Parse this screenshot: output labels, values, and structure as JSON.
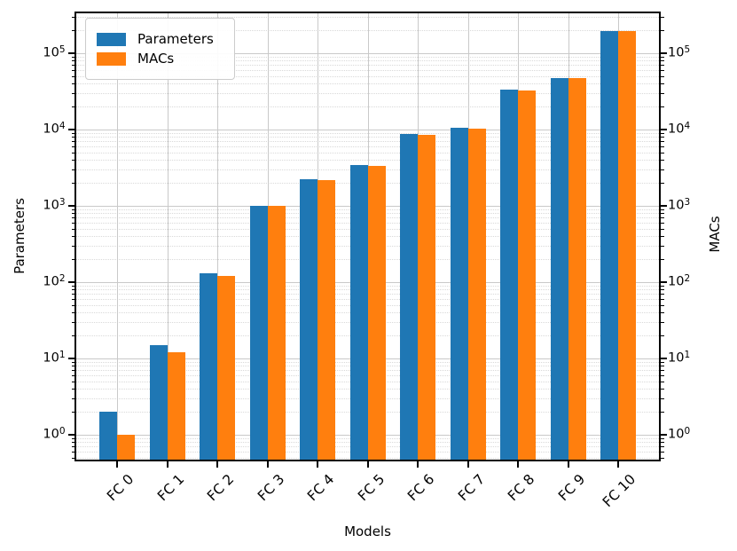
{
  "chart_data": {
    "type": "bar",
    "title": "",
    "xlabel": "Models",
    "ylabel_left": "Parameters",
    "ylabel_right": "MACs",
    "yscale": "log",
    "ylim": [
      0.45,
      350000
    ],
    "ytick_exponents": [
      0,
      1,
      2,
      3,
      4,
      5
    ],
    "grid": {
      "major": true,
      "minor": true,
      "vertical": true
    },
    "legend_position": "upper left",
    "categories": [
      "FC 0",
      "FC 1",
      "FC 2",
      "FC 3",
      "FC 4",
      "FC 5",
      "FC 6",
      "FC 7",
      "FC 8",
      "FC 9",
      "FC 10"
    ],
    "series": [
      {
        "name": "Parameters",
        "axis": "left",
        "color": "#1f77b4",
        "values": [
          2,
          15,
          130,
          1000,
          2200,
          3400,
          8800,
          10600,
          33200,
          47000,
          195000
        ]
      },
      {
        "name": "MACs",
        "axis": "right",
        "color": "#ff7f0e",
        "values": [
          1,
          12,
          120,
          1000,
          2160,
          3300,
          8600,
          10300,
          32600,
          46500,
          193000
        ]
      }
    ],
    "colors": {
      "spine": "#000000",
      "grid_major": "#c9c9c9",
      "grid_minor": "#d9d9d9",
      "background": "#ffffff"
    }
  }
}
